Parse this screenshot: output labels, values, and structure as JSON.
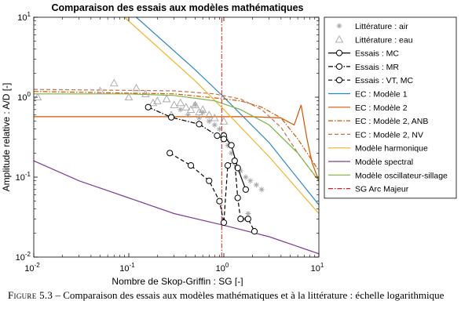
{
  "chart_data": {
    "type": "line",
    "title": "Comparaison des essais aux modèles mathématiques",
    "xlabel": "Nombre de Skop-Griffin : SG [-]",
    "ylabel": "Amplitude relative : A/D [-]",
    "xscale": "log",
    "yscale": "log",
    "xlim": [
      0.01,
      10
    ],
    "ylim": [
      0.01,
      10
    ],
    "grid": false,
    "legend_position": "outside-right",
    "x_ticks": [
      {
        "value": 0.01,
        "base": "10",
        "exp": "-2"
      },
      {
        "value": 0.1,
        "base": "10",
        "exp": "-1"
      },
      {
        "value": 1,
        "base": "10",
        "exp": "0"
      },
      {
        "value": 10,
        "base": "10",
        "exp": "1"
      }
    ],
    "y_ticks": [
      {
        "value": 0.01,
        "base": "10",
        "exp": "-2"
      },
      {
        "value": 0.1,
        "base": "10",
        "exp": "-1"
      },
      {
        "value": 1,
        "base": "10",
        "exp": "0"
      },
      {
        "value": 10,
        "base": "10",
        "exp": "1"
      }
    ],
    "series": [
      {
        "name": "Littérature : air",
        "kind": "scatter",
        "marker": "asterisk",
        "color": "#a6a6a6",
        "x": [
          0.35,
          0.42,
          0.5,
          0.55,
          0.6,
          0.7,
          0.8,
          0.9,
          1.0,
          1.05,
          1.1,
          1.2,
          1.3,
          1.5,
          1.7,
          1.9,
          2.2,
          2.5,
          1.6,
          1.8
        ],
        "y": [
          0.7,
          0.6,
          0.8,
          0.55,
          0.65,
          0.5,
          0.45,
          0.4,
          0.35,
          0.3,
          0.25,
          0.2,
          0.15,
          0.12,
          0.1,
          0.09,
          0.08,
          0.07,
          0.03,
          0.035
        ]
      },
      {
        "name": "Littérature : eau",
        "kind": "scatter",
        "marker": "triangle",
        "color": "#a6a6a6",
        "x": [
          0.011,
          0.05,
          0.07,
          0.1,
          0.15,
          0.2,
          0.25,
          0.3,
          0.35,
          0.4,
          0.45,
          0.5,
          0.55,
          0.6,
          0.7,
          0.8,
          1.0,
          0.12,
          0.18,
          0.28
        ],
        "y": [
          1.0,
          1.2,
          1.5,
          1.0,
          1.1,
          0.9,
          0.95,
          0.8,
          0.85,
          0.75,
          0.7,
          0.8,
          0.65,
          0.7,
          0.6,
          0.55,
          0.5,
          1.3,
          0.85,
          0.6
        ]
      },
      {
        "name": "Essais : MC",
        "kind": "line",
        "marker": "circle",
        "dash": "solid",
        "color": "#000000",
        "x": [
          1.0,
          1.2,
          1.4,
          1.7
        ],
        "y": [
          0.33,
          0.25,
          0.13,
          0.07
        ]
      },
      {
        "name": "Essais : MR",
        "kind": "line",
        "marker": "circle",
        "dash": "dashdot",
        "color": "#000000",
        "x": [
          0.16,
          0.28,
          0.55,
          0.85,
          1.0
        ],
        "y": [
          0.75,
          0.56,
          0.46,
          0.33,
          0.3
        ]
      },
      {
        "name": "Essais : VT, MC",
        "kind": "line",
        "marker": "circle",
        "dash": "dashed",
        "color": "#000000",
        "x": [
          0.27,
          0.45,
          0.7,
          0.9,
          1.0,
          1.1,
          1.3,
          1.4,
          1.5,
          1.8,
          2.1
        ],
        "y": [
          0.2,
          0.14,
          0.09,
          0.05,
          0.027,
          0.14,
          0.16,
          0.055,
          0.03,
          0.03,
          0.021
        ]
      },
      {
        "name": "EC : Modèle 1",
        "kind": "line",
        "dash": "solid",
        "color": "#2e86c1",
        "x": [
          0.12,
          0.5,
          1.0,
          3.0,
          10.0
        ],
        "y": [
          10,
          2.2,
          1.0,
          0.27,
          0.045
        ]
      },
      {
        "name": "EC : Modèle 2",
        "kind": "line",
        "dash": "solid",
        "color": "#d35400",
        "x": [
          0.01,
          0.5,
          2.0,
          4.0,
          5.5,
          6.5,
          7.5,
          8.5,
          10.0
        ],
        "y": [
          0.57,
          0.57,
          0.57,
          0.55,
          0.45,
          0.8,
          0.3,
          0.15,
          0.09
        ]
      },
      {
        "name": "EC : Modèle 2, ANB",
        "kind": "line",
        "dash": "dashdot",
        "color": "#d35400",
        "x": [
          0.01,
          0.3,
          0.8,
          1.5,
          2.5,
          4.0,
          6.0,
          10.0
        ],
        "y": [
          1.18,
          1.1,
          0.98,
          0.9,
          0.75,
          0.55,
          0.3,
          0.12
        ]
      },
      {
        "name": "EC : Modèle 2, NV",
        "kind": "line",
        "dash": "dashed",
        "color": "#c0704a",
        "x": [
          0.01,
          0.3,
          0.8,
          1.5,
          2.5,
          4.0,
          6.0,
          10.0
        ],
        "y": [
          1.25,
          1.2,
          1.1,
          0.95,
          0.7,
          0.42,
          0.2,
          0.09
        ]
      },
      {
        "name": "Modèle harmonique",
        "kind": "line",
        "dash": "solid",
        "color": "#f0b428",
        "x": [
          0.09,
          0.5,
          1.0,
          3.0,
          10.0
        ],
        "y": [
          10,
          1.6,
          0.7,
          0.18,
          0.035
        ]
      },
      {
        "name": "Modèle spectral",
        "kind": "line",
        "dash": "solid",
        "color": "#7d3c98",
        "x": [
          0.01,
          0.03,
          0.1,
          0.3,
          1.0,
          3.0,
          10.0
        ],
        "y": [
          0.16,
          0.09,
          0.055,
          0.035,
          0.025,
          0.018,
          0.011
        ]
      },
      {
        "name": "Modèle oscillateur-sillage",
        "kind": "line",
        "dash": "solid",
        "color": "#7cb342",
        "x": [
          0.01,
          0.1,
          0.3,
          0.8,
          1.5,
          3.0,
          6.0,
          10.0
        ],
        "y": [
          1.1,
          1.1,
          1.05,
          0.9,
          0.7,
          0.45,
          0.2,
          0.09
        ]
      },
      {
        "name": "SG Arc Majeur",
        "kind": "vline",
        "dash": "dashdot",
        "color": "#d81b1b",
        "x": [
          0.95,
          0.95
        ],
        "y": [
          0.01,
          10
        ]
      }
    ]
  },
  "caption": {
    "label": "Figure 5.3",
    "text": " – Comparaison des essais aux modèles mathématiques et à la littérature : échelle logarithmique"
  }
}
